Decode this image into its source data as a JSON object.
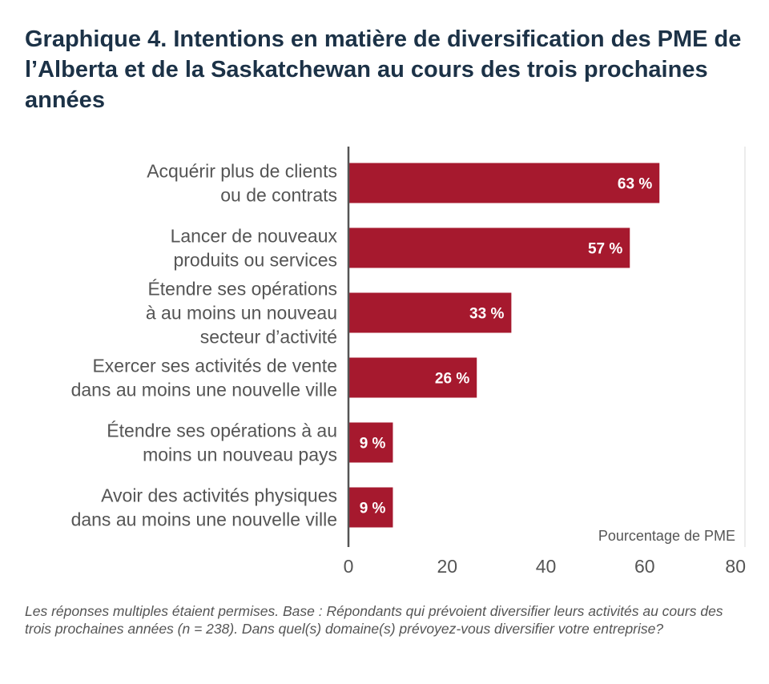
{
  "chart_data": {
    "type": "bar",
    "orientation": "horizontal",
    "title": "Graphique 4. Intentions en matière de diversification des PME de l’Alberta et de la Saskatchewan au cours des trois prochaines années",
    "categories": [
      [
        "Acquérir plus de clients",
        "ou de contrats"
      ],
      [
        "Lancer de nouveaux",
        "produits ou services"
      ],
      [
        "Étendre ses opérations",
        "à au moins un nouveau",
        "secteur d’activité"
      ],
      [
        "Exercer ses activités de vente",
        "dans au moins une nouvelle ville"
      ],
      [
        "Étendre ses opérations à au",
        "moins un nouveau pays"
      ],
      [
        "Avoir des activités physiques",
        "dans au moins une nouvelle ville"
      ]
    ],
    "values": [
      63,
      57,
      33,
      26,
      9,
      9
    ],
    "value_labels": [
      "63 %",
      "57 %",
      "33 %",
      "26 %",
      "9 %",
      "9 %"
    ],
    "xlabel": "Pourcentage de PME",
    "xlim": [
      0,
      80
    ],
    "xticks": [
      0,
      20,
      40,
      60,
      80
    ],
    "grid": false,
    "bar_color": "#a6192e"
  },
  "note": "Les réponses multiples étaient permises. Base : Répondants qui prévoient diversifier leurs activités au cours des trois prochaines années (n = 238). Dans quel(s) domaine(s) prévoyez-vous diversifier votre entreprise?"
}
